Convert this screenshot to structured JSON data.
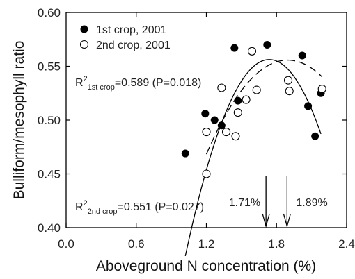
{
  "chart_data": {
    "type": "scatter",
    "xlabel": "Aboveground N concentration (%)",
    "ylabel": "Bulliform/mesophyll ratio",
    "xlim": [
      0.0,
      2.4
    ],
    "ylim": [
      0.4,
      0.6
    ],
    "xticks": [
      "0.0",
      "0.6",
      "1.2",
      "1.8",
      "2.4"
    ],
    "xtick_values": [
      0.0,
      0.6,
      1.2,
      1.8,
      2.4
    ],
    "yticks": [
      "0.40",
      "0.45",
      "0.50",
      "0.55",
      "0.60"
    ],
    "ytick_values": [
      0.4,
      0.45,
      0.5,
      0.55,
      0.6
    ],
    "grid": false,
    "legend_position": "top-left",
    "series": [
      {
        "name": "1st crop, 2001",
        "marker": "filled-circle",
        "color": "#000000",
        "points": [
          [
            1.02,
            0.469
          ],
          [
            1.19,
            0.506
          ],
          [
            1.27,
            0.5
          ],
          [
            1.33,
            0.495
          ],
          [
            1.44,
            0.567
          ],
          [
            1.47,
            0.518
          ],
          [
            1.72,
            0.57
          ],
          [
            2.02,
            0.56
          ],
          [
            2.07,
            0.513
          ],
          [
            2.13,
            0.485
          ],
          [
            2.18,
            0.525
          ]
        ],
        "fit": {
          "type": "quadratic-solid",
          "coefficients": [
            -0.5138,
            1.2313,
            -0.3542
          ],
          "x_range": [
            1.02,
            2.18
          ],
          "annotation": {
            "base": "R",
            "sup": "2",
            "sub": "1st crop",
            "text": "=0.589 (P=0.018)"
          }
        }
      },
      {
        "name": "2nd crop, 2001",
        "marker": "open-circle",
        "color": "#000000",
        "points": [
          [
            1.2,
            0.45
          ],
          [
            1.2,
            0.489
          ],
          [
            1.33,
            0.53
          ],
          [
            1.37,
            0.489
          ],
          [
            1.45,
            0.485
          ],
          [
            1.47,
            0.507
          ],
          [
            1.54,
            0.519
          ],
          [
            1.59,
            0.564
          ],
          [
            1.63,
            0.528
          ],
          [
            1.9,
            0.537
          ],
          [
            1.91,
            0.527
          ],
          [
            2.19,
            0.529
          ]
        ],
        "fit": {
          "type": "quadratic-dashed",
          "coefficients": [
            -0.0934,
            0.6848,
            -0.1806
          ],
          "x_range": [
            1.2,
            2.19
          ],
          "annotation": {
            "base": "R",
            "sup": "2",
            "sub": "2nd crop",
            "text": "=0.551 (P=0.027)"
          }
        }
      }
    ],
    "markers": [
      {
        "label": "1.71%",
        "x": 1.71
      },
      {
        "label": "1.89%",
        "x": 1.89
      }
    ]
  }
}
